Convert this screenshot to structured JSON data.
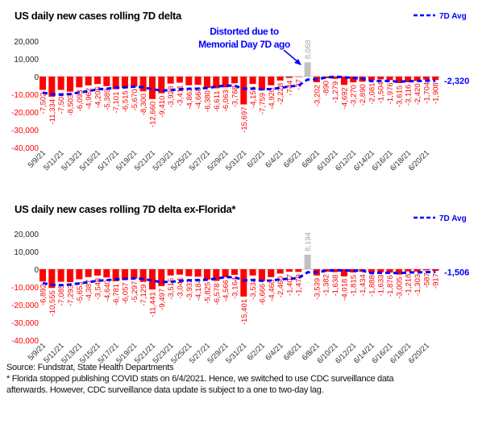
{
  "colors": {
    "bar_negative": "#ff0000",
    "bar_positive": "#c0c0c0",
    "avg_line": "#0000ff",
    "annotation": "#0000ff",
    "zero_line": "#bfbfbf"
  },
  "chart_data": [
    {
      "type": "bar",
      "title": "US daily new cases rolling 7D delta",
      "legend": {
        "label": "7D Avg",
        "placement": "top-right"
      },
      "ylim": [
        -40000,
        20000
      ],
      "y_ticks": [
        "20,000",
        "10,000",
        "0",
        "-10,000",
        "-20,000",
        "-30,000",
        "-40,000"
      ],
      "y_tick_values": [
        20000,
        10000,
        0,
        -10000,
        -20000,
        -30000,
        -40000
      ],
      "x_tick_labels": [
        "5/9/21",
        "5/11/21",
        "5/13/21",
        "5/15/21",
        "5/17/21",
        "5/19/21",
        "5/21/21",
        "5/23/21",
        "5/25/21",
        "5/27/21",
        "5/29/21",
        "5/31/21",
        "6/2/21",
        "6/4/21",
        "6/6/21",
        "6/8/21",
        "6/10/21",
        "6/12/21",
        "6/14/21",
        "6/16/21",
        "6/18/21",
        "6/20/21"
      ],
      "series": [
        {
          "type": "bar",
          "values": [
            -7502,
            -11334,
            -7504,
            -8503,
            -6093,
            -4962,
            -4206,
            -5389,
            -7101,
            -6515,
            -5670,
            -8300,
            -12660,
            -9410,
            -3928,
            -3411,
            -4863,
            -4668,
            -6380,
            -6611,
            -6063,
            -3768,
            -15697,
            -4155,
            -7759,
            -4920,
            -2228,
            -744,
            -37,
            8068,
            -3202,
            -890,
            -1279,
            -4692,
            -3270,
            -2890,
            -2081,
            -1504,
            -1976,
            -3615,
            -3116,
            -2420,
            -1704,
            -1908
          ],
          "labels": [
            "-7,502",
            "-11,334",
            "-7,504",
            "-8,503",
            "-6,093",
            "-4,962",
            "-4,206",
            "-5,389",
            "-7,101",
            "-6,515",
            "-5,670",
            "-8,300",
            "-12,660",
            "-9,410",
            "-3,928",
            "-3,411",
            "-4,863",
            "-4,668",
            "-6,380",
            "-6,611",
            "-6,063",
            "-3,768",
            "-15,697",
            "-4,155",
            "-7,759",
            "-4,920",
            "-2,228",
            "-744",
            "-37",
            "8,068",
            "-3,202",
            "-890",
            "-1,279",
            "-4,692",
            "-3,270",
            "-2,890",
            "-2,081",
            "-1,504",
            "-1,976",
            "-3,615",
            "-3,116",
            "-2,420",
            "-1,704",
            "-1,908"
          ]
        },
        {
          "type": "line",
          "name": "7D Avg",
          "values": [
            -9000,
            -10000,
            -10200,
            -9800,
            -9000,
            -8200,
            -7158,
            -6856,
            -6251,
            -6110,
            -5705,
            -6020,
            -7120,
            -7864,
            -7655,
            -7128,
            -6892,
            -6749,
            -6474,
            -5610,
            -5132,
            -5109,
            -6864,
            -6763,
            -7205,
            -6996,
            -6370,
            -5610,
            -5077,
            -1682,
            -1546,
            -565,
            -45,
            -397,
            -757,
            -1165,
            -2615,
            -2372,
            -2527,
            -2861,
            -2636,
            -2515,
            -2345,
            -2320
          ],
          "end_label": "-2,320"
        }
      ],
      "annotation": {
        "lines": [
          "Distorted due to",
          "Memorial Day 7D ago"
        ]
      }
    },
    {
      "type": "bar",
      "title": "US daily new cases rolling 7D delta ex-Florida*",
      "legend": {
        "label": "7D Avg",
        "placement": "top-right"
      },
      "ylim": [
        -40000,
        20000
      ],
      "y_ticks": [
        "20,000",
        "10,000",
        "0",
        "-10,000",
        "-20,000",
        "-30,000",
        "-40,000"
      ],
      "y_tick_values": [
        20000,
        10000,
        0,
        -10000,
        -20000,
        -30000,
        -40000
      ],
      "x_tick_labels": [
        "5/9/21",
        "5/11/21",
        "5/13/21",
        "5/15/21",
        "5/17/21",
        "5/19/21",
        "5/21/21",
        "5/23/21",
        "5/25/21",
        "5/27/21",
        "5/29/21",
        "5/31/21",
        "6/2/21",
        "6/4/21",
        "6/6/21",
        "6/8/21",
        "6/10/21",
        "6/12/21",
        "6/14/21",
        "6/16/21",
        "6/18/21",
        "6/20/21"
      ],
      "series": [
        {
          "type": "bar",
          "values": [
            -6892,
            -10555,
            -7085,
            -7293,
            -5653,
            -4387,
            -3548,
            -4640,
            -6781,
            -6057,
            -5297,
            -7129,
            -11441,
            -9497,
            -3515,
            -3041,
            -3932,
            -4184,
            -5825,
            -6578,
            -4566,
            -3164,
            -15401,
            -3534,
            -6666,
            -4460,
            -2460,
            -1407,
            -1479,
            8194,
            -3539,
            -1382,
            -1638,
            -4018,
            -1815,
            -1434,
            -1888,
            -1633,
            -1876,
            -3005,
            -1218,
            -1303,
            -587,
            -917
          ],
          "labels": [
            "-6,892",
            "-10,555",
            "-7,085",
            "-7,293",
            "-5,653",
            "-4,387",
            "-3,548",
            "-4,640",
            "-6,781",
            "-6,057",
            "-5,297",
            "-7,129",
            "-11,441",
            "-9,497",
            "-3,515",
            "-3,041",
            "-3,932",
            "-4,184",
            "-5,825",
            "-6,578",
            "-4,566",
            "-3,164",
            "-15,401",
            "-3,534",
            "-6,666",
            "-4,460",
            "-2,460",
            "-1,407",
            "-1,479",
            "8,194",
            "-3,539",
            "-1,382",
            "-1,638",
            "-4,018",
            "-1,815",
            "-1,434",
            "-1,888",
            "-1,633",
            "-1,876",
            "-3,005",
            "-1,218",
            "-1,303",
            "-587",
            "-917"
          ]
        },
        {
          "type": "line",
          "name": "7D Avg",
          "values": [
            -7800,
            -8800,
            -9000,
            -8600,
            -8000,
            -7300,
            -6488,
            -6166,
            -5627,
            -5480,
            -5195,
            -5406,
            -6413,
            -7263,
            -7102,
            -6568,
            -6265,
            -6106,
            -5919,
            -5225,
            -4520,
            -4470,
            -6236,
            -6179,
            -6533,
            -6338,
            -5750,
            -5299,
            -5058,
            -1687,
            -1688,
            -933,
            -530,
            -753,
            -811,
            -805,
            -2245,
            -1973,
            -2043,
            -2238,
            -1838,
            -1765,
            -1644,
            -1506
          ],
          "end_label": "-1,506"
        }
      ]
    }
  ],
  "footer": {
    "source": "Source: Fundstrat, State Health Departments",
    "note_line1": "* Florida stopped publishing COVID  stats on 6/4/2021. Hence, we switched to use CDC surveillance data",
    "note_line2": "afterwards. However,  CDC surveillance data update is subject to a one to two-day lag."
  }
}
